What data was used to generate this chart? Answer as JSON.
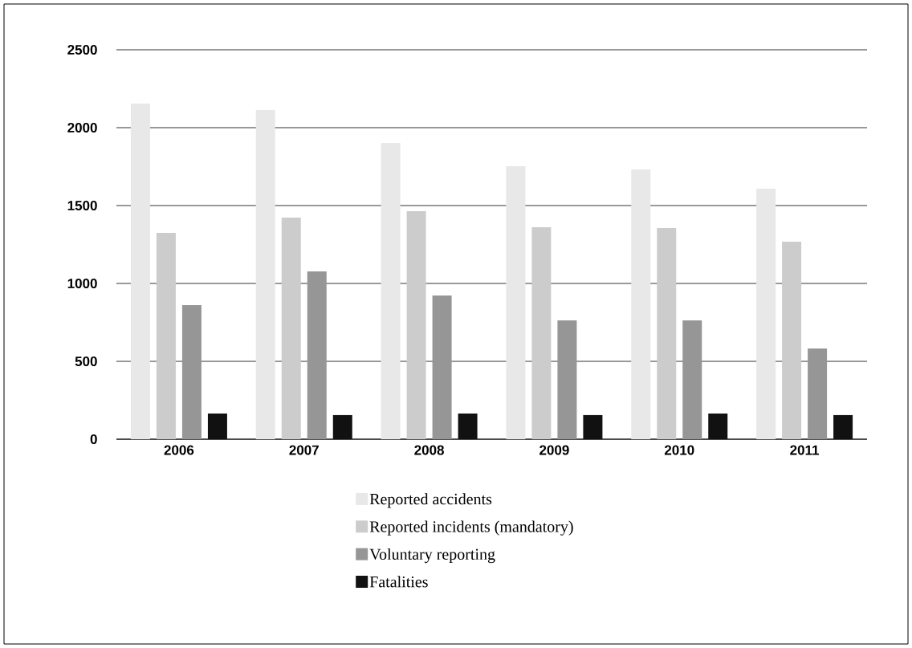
{
  "chart_data": {
    "type": "bar",
    "categories": [
      "2006",
      "2007",
      "2008",
      "2009",
      "2010",
      "2011"
    ],
    "series": [
      {
        "name": "Reported accidents",
        "color": "#e8e8e8",
        "values": [
          2155,
          2113,
          1902,
          1753,
          1732,
          1608
        ]
      },
      {
        "name": "Reported incidents (mandatory)",
        "color": "#cccccc",
        "values": [
          1325,
          1423,
          1464,
          1361,
          1356,
          1268
        ]
      },
      {
        "name": "Voluntary reporting",
        "color": "#969696",
        "values": [
          861,
          1077,
          923,
          763,
          763,
          582
        ]
      },
      {
        "name": "Fatalities",
        "color": "#111111",
        "values": [
          165,
          155,
          165,
          155,
          165,
          155
        ]
      }
    ],
    "ylim": [
      0,
      2500
    ],
    "yticks": [
      0,
      500,
      1000,
      1500,
      2000,
      2500
    ],
    "grid": "y",
    "legend": "bottom"
  }
}
